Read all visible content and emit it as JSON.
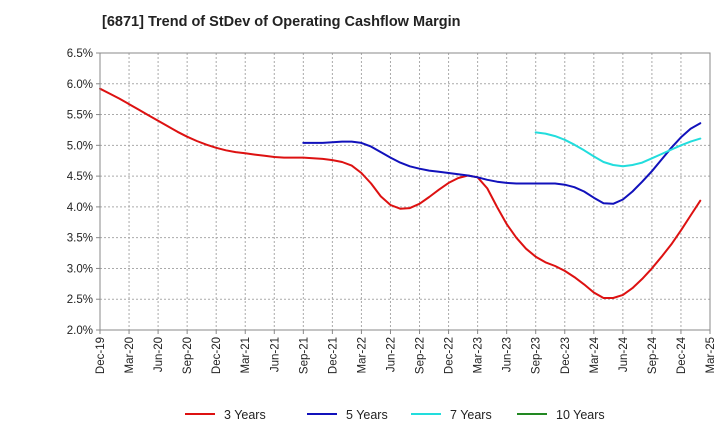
{
  "chart_data": {
    "type": "line",
    "title": "[6871]  Trend of StDev of Operating Cashflow Margin",
    "xlabel": "",
    "ylabel": "",
    "x_ticks": [
      "Dec-19",
      "Mar-20",
      "Jun-20",
      "Sep-20",
      "Dec-20",
      "Mar-21",
      "Jun-21",
      "Sep-21",
      "Dec-21",
      "Mar-22",
      "Jun-22",
      "Sep-22",
      "Dec-22",
      "Mar-23",
      "Jun-23",
      "Sep-23",
      "Dec-23",
      "Mar-24",
      "Jun-24",
      "Sep-24",
      "Dec-24",
      "Mar-25"
    ],
    "y_ticks": [
      "2.0%",
      "2.5%",
      "3.0%",
      "3.5%",
      "4.0%",
      "4.5%",
      "5.0%",
      "5.5%",
      "6.0%",
      "6.5%"
    ],
    "ylim": [
      2.0,
      6.5
    ],
    "x_unit": "quarter",
    "grid": true,
    "legend_position": "bottom",
    "series": [
      {
        "name": "3 Years",
        "color": "#dd1111",
        "points": [
          [
            "Dec-19",
            5.92
          ],
          [
            "Jan-20",
            5.84
          ],
          [
            "Feb-20",
            5.76
          ],
          [
            "Mar-20",
            5.67
          ],
          [
            "Apr-20",
            5.58
          ],
          [
            "May-20",
            5.49
          ],
          [
            "Jun-20",
            5.4
          ],
          [
            "Jul-20",
            5.31
          ],
          [
            "Aug-20",
            5.22
          ],
          [
            "Sep-20",
            5.14
          ],
          [
            "Oct-20",
            5.07
          ],
          [
            "Nov-20",
            5.01
          ],
          [
            "Dec-20",
            4.96
          ],
          [
            "Jan-21",
            4.92
          ],
          [
            "Feb-21",
            4.89
          ],
          [
            "Mar-21",
            4.87
          ],
          [
            "Apr-21",
            4.85
          ],
          [
            "May-21",
            4.83
          ],
          [
            "Jun-21",
            4.81
          ],
          [
            "Jul-21",
            4.8
          ],
          [
            "Aug-21",
            4.8
          ],
          [
            "Sep-21",
            4.8
          ],
          [
            "Oct-21",
            4.79
          ],
          [
            "Nov-21",
            4.78
          ],
          [
            "Dec-21",
            4.76
          ],
          [
            "Jan-22",
            4.73
          ],
          [
            "Feb-22",
            4.67
          ],
          [
            "Mar-22",
            4.55
          ],
          [
            "Apr-22",
            4.38
          ],
          [
            "May-22",
            4.17
          ],
          [
            "Jun-22",
            4.03
          ],
          [
            "Jul-22",
            3.97
          ],
          [
            "Aug-22",
            3.98
          ],
          [
            "Sep-22",
            4.05
          ],
          [
            "Oct-22",
            4.16
          ],
          [
            "Nov-22",
            4.28
          ],
          [
            "Dec-22",
            4.39
          ],
          [
            "Jan-23",
            4.47
          ],
          [
            "Feb-23",
            4.51
          ],
          [
            "Mar-23",
            4.48
          ],
          [
            "Apr-23",
            4.3
          ],
          [
            "May-23",
            4.0
          ],
          [
            "Jun-23",
            3.72
          ],
          [
            "Jul-23",
            3.5
          ],
          [
            "Aug-23",
            3.32
          ],
          [
            "Sep-23",
            3.19
          ],
          [
            "Oct-23",
            3.1
          ],
          [
            "Nov-23",
            3.04
          ],
          [
            "Dec-23",
            2.96
          ],
          [
            "Jan-24",
            2.86
          ],
          [
            "Feb-24",
            2.74
          ],
          [
            "Mar-24",
            2.61
          ],
          [
            "Apr-24",
            2.52
          ],
          [
            "May-24",
            2.52
          ],
          [
            "Jun-24",
            2.57
          ],
          [
            "Jul-24",
            2.68
          ],
          [
            "Aug-24",
            2.83
          ],
          [
            "Sep-24",
            3.0
          ],
          [
            "Oct-24",
            3.19
          ],
          [
            "Nov-24",
            3.39
          ],
          [
            "Dec-24",
            3.62
          ],
          [
            "Jan-25",
            3.86
          ],
          [
            "Feb-25",
            4.1
          ]
        ]
      },
      {
        "name": "5 Years",
        "color": "#1111bb",
        "points": [
          [
            "Sep-21",
            5.04
          ],
          [
            "Oct-21",
            5.04
          ],
          [
            "Nov-21",
            5.04
          ],
          [
            "Dec-21",
            5.05
          ],
          [
            "Jan-22",
            5.06
          ],
          [
            "Feb-22",
            5.06
          ],
          [
            "Mar-22",
            5.04
          ],
          [
            "Apr-22",
            4.98
          ],
          [
            "May-22",
            4.89
          ],
          [
            "Jun-22",
            4.8
          ],
          [
            "Jul-22",
            4.72
          ],
          [
            "Aug-22",
            4.66
          ],
          [
            "Sep-22",
            4.62
          ],
          [
            "Oct-22",
            4.59
          ],
          [
            "Nov-22",
            4.57
          ],
          [
            "Dec-22",
            4.55
          ],
          [
            "Jan-23",
            4.53
          ],
          [
            "Feb-23",
            4.51
          ],
          [
            "Mar-23",
            4.48
          ],
          [
            "Apr-23",
            4.44
          ],
          [
            "May-23",
            4.41
          ],
          [
            "Jun-23",
            4.39
          ],
          [
            "Jul-23",
            4.38
          ],
          [
            "Aug-23",
            4.38
          ],
          [
            "Sep-23",
            4.38
          ],
          [
            "Oct-23",
            4.38
          ],
          [
            "Nov-23",
            4.38
          ],
          [
            "Dec-23",
            4.36
          ],
          [
            "Jan-24",
            4.32
          ],
          [
            "Feb-24",
            4.25
          ],
          [
            "Mar-24",
            4.15
          ],
          [
            "Apr-24",
            4.06
          ],
          [
            "May-24",
            4.05
          ],
          [
            "Jun-24",
            4.12
          ],
          [
            "Jul-24",
            4.25
          ],
          [
            "Aug-24",
            4.41
          ],
          [
            "Sep-24",
            4.58
          ],
          [
            "Oct-24",
            4.77
          ],
          [
            "Nov-24",
            4.96
          ],
          [
            "Dec-24",
            5.13
          ],
          [
            "Jan-25",
            5.27
          ],
          [
            "Feb-25",
            5.36
          ]
        ]
      },
      {
        "name": "7 Years",
        "color": "#22dddd",
        "points": [
          [
            "Sep-23",
            5.21
          ],
          [
            "Oct-23",
            5.19
          ],
          [
            "Nov-23",
            5.15
          ],
          [
            "Dec-23",
            5.09
          ],
          [
            "Jan-24",
            5.01
          ],
          [
            "Feb-24",
            4.92
          ],
          [
            "Mar-24",
            4.82
          ],
          [
            "Apr-24",
            4.73
          ],
          [
            "May-24",
            4.68
          ],
          [
            "Jun-24",
            4.66
          ],
          [
            "Jul-24",
            4.68
          ],
          [
            "Aug-24",
            4.72
          ],
          [
            "Sep-24",
            4.79
          ],
          [
            "Oct-24",
            4.86
          ],
          [
            "Nov-24",
            4.93
          ],
          [
            "Dec-24",
            5.0
          ],
          [
            "Jan-25",
            5.06
          ],
          [
            "Feb-25",
            5.11
          ]
        ]
      },
      {
        "name": "10 Years",
        "color": "#228822",
        "points": []
      }
    ]
  }
}
